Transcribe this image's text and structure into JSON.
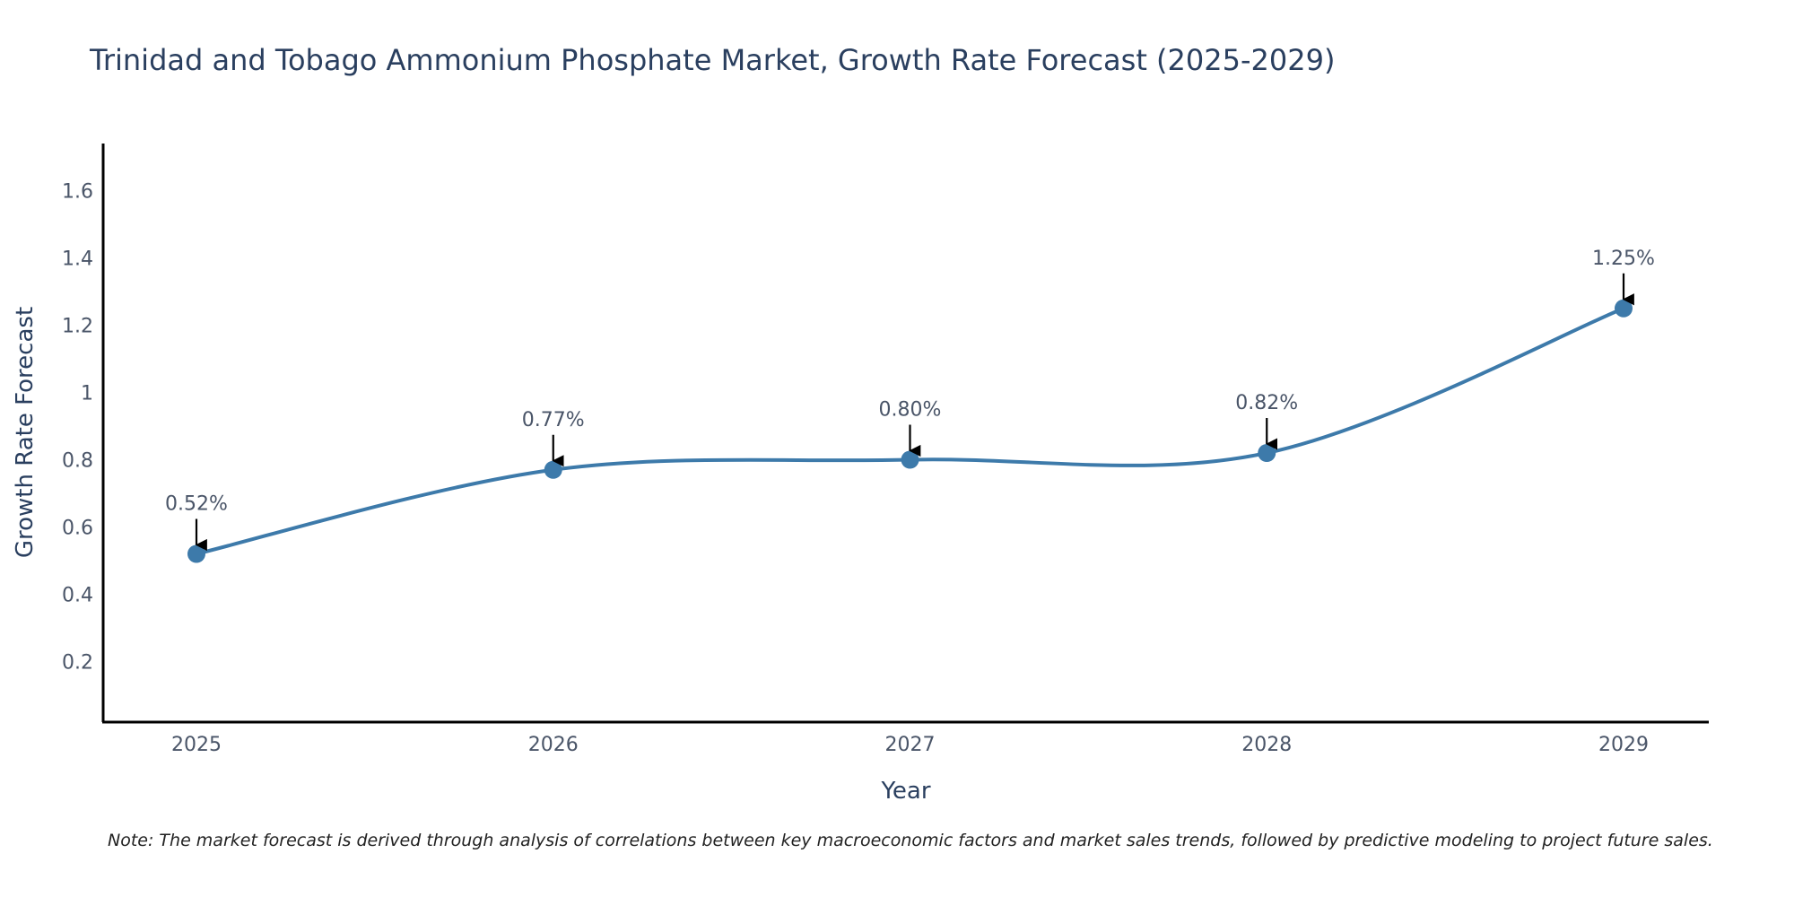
{
  "chart_data": {
    "type": "line",
    "title": "Trinidad and Tobago Ammonium Phosphate Market, Growth Rate Forecast (2025-2029)",
    "xlabel": "Year",
    "ylabel": "Growth Rate Forecast",
    "categories": [
      "2025",
      "2026",
      "2027",
      "2028",
      "2029"
    ],
    "values": [
      0.52,
      0.77,
      0.8,
      0.82,
      1.25
    ],
    "data_labels": [
      "0.52%",
      "0.77%",
      "0.80%",
      "0.82%",
      "1.25%"
    ],
    "ylim": [
      0.02,
      1.74
    ],
    "yticks": [
      0.2,
      0.4,
      0.6,
      0.8,
      1,
      1.2,
      1.4,
      1.6
    ],
    "ytick_labels": [
      "0.2",
      "0.4",
      "0.6",
      "0.8",
      "1",
      "1.2",
      "1.4",
      "1.6"
    ],
    "grid": false,
    "line_color": "#3d7aaa",
    "marker_color": "#3d7aaa",
    "arrow_color": "#000000",
    "note": "Note: The market forecast is derived through analysis of correlations between key macroeconomic factors and market sales trends, followed by predictive modeling to project future sales."
  }
}
